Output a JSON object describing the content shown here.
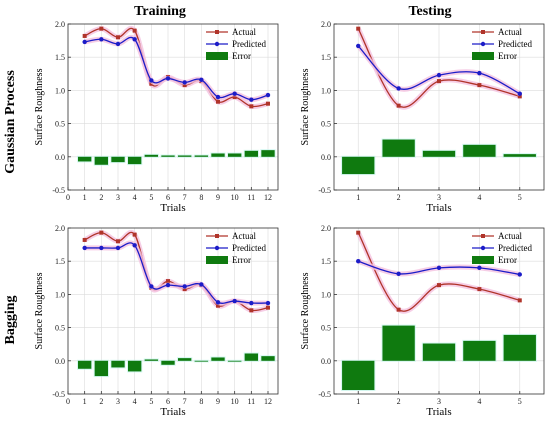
{
  "figure": {
    "col_titles": [
      "Training",
      "Testing"
    ],
    "row_titles": [
      "Gaussian Process",
      "Bagging"
    ]
  },
  "colors": {
    "actual": "#b0342a",
    "predicted": "#1c1cc8",
    "error": "#0f7a0f",
    "grid": "#dcdcdc",
    "axis": "#333333",
    "glow": "#f4c2e0"
  },
  "chart_data": [
    {
      "id": "gp-training",
      "type": "line+bar",
      "xlabel": "Trials",
      "ylabel": "Surface Roughness",
      "xlim": [
        0,
        12.6
      ],
      "ylim": [
        -0.5,
        2.0
      ],
      "xticks": [
        "0",
        "1",
        "2",
        "3",
        "4",
        "5",
        "6",
        "7",
        "8",
        "9",
        "10",
        "11",
        "12"
      ],
      "yticks": [
        "-0.5",
        "0.0",
        "0.5",
        "1.0",
        "1.5",
        "2.0"
      ],
      "x": [
        1,
        2,
        3,
        4,
        5,
        6,
        7,
        8,
        9,
        10,
        11,
        12
      ],
      "series": [
        {
          "name": "Actual",
          "values": [
            1.82,
            1.93,
            1.8,
            1.9,
            1.1,
            1.2,
            1.08,
            1.14,
            0.83,
            0.9,
            0.76,
            0.8
          ]
        },
        {
          "name": "Predicted",
          "values": [
            1.73,
            1.77,
            1.7,
            1.77,
            1.15,
            1.18,
            1.12,
            1.16,
            0.9,
            0.95,
            0.86,
            0.93
          ]
        },
        {
          "name": "Error",
          "values": [
            -0.07,
            -0.12,
            -0.08,
            -0.11,
            0.03,
            0.02,
            0.02,
            0.02,
            0.05,
            0.05,
            0.09,
            0.1
          ]
        }
      ],
      "legend": "top-right"
    },
    {
      "id": "gp-testing",
      "type": "line+bar",
      "xlabel": "Trials",
      "ylabel": "Surface Roughness",
      "xlim": [
        0.4,
        5.6
      ],
      "ylim": [
        -0.5,
        2.0
      ],
      "xticks": [
        "1",
        "2",
        "3",
        "4",
        "5"
      ],
      "yticks": [
        "-0.5",
        "0.0",
        "0.5",
        "1.0",
        "1.5",
        "2.0"
      ],
      "x": [
        1,
        2,
        3,
        4,
        5
      ],
      "series": [
        {
          "name": "Actual",
          "values": [
            1.93,
            0.77,
            1.14,
            1.08,
            0.91
          ]
        },
        {
          "name": "Predicted",
          "values": [
            1.67,
            1.03,
            1.23,
            1.26,
            0.95
          ]
        },
        {
          "name": "Error",
          "values": [
            -0.26,
            0.26,
            0.09,
            0.18,
            0.04
          ]
        }
      ],
      "legend": "top-right"
    },
    {
      "id": "bag-training",
      "type": "line+bar",
      "xlabel": "Trials",
      "ylabel": "Surface Roughness",
      "xlim": [
        0,
        12.6
      ],
      "ylim": [
        -0.5,
        2.0
      ],
      "xticks": [
        "0",
        "1",
        "2",
        "3",
        "4",
        "5",
        "6",
        "7",
        "8",
        "9",
        "10",
        "11",
        "12"
      ],
      "yticks": [
        "-0.5",
        "0.0",
        "0.5",
        "1.0",
        "1.5",
        "2.0"
      ],
      "x": [
        1,
        2,
        3,
        4,
        5,
        6,
        7,
        8,
        9,
        10,
        11,
        12
      ],
      "series": [
        {
          "name": "Actual",
          "values": [
            1.82,
            1.93,
            1.8,
            1.9,
            1.1,
            1.2,
            1.08,
            1.14,
            0.83,
            0.9,
            0.76,
            0.8
          ]
        },
        {
          "name": "Predicted",
          "values": [
            1.7,
            1.7,
            1.7,
            1.74,
            1.12,
            1.14,
            1.12,
            1.15,
            0.88,
            0.9,
            0.87,
            0.87
          ]
        },
        {
          "name": "Error",
          "values": [
            -0.12,
            -0.23,
            -0.1,
            -0.16,
            0.02,
            -0.06,
            0.04,
            -0.01,
            0.05,
            -0.01,
            0.11,
            0.07
          ]
        }
      ],
      "legend": "top-right"
    },
    {
      "id": "bag-testing",
      "type": "line+bar",
      "xlabel": "Trials",
      "ylabel": "Surface Roughness",
      "xlim": [
        0.4,
        5.6
      ],
      "ylim": [
        -0.5,
        2.0
      ],
      "xticks": [
        "1",
        "2",
        "3",
        "4",
        "5"
      ],
      "yticks": [
        "-0.5",
        "0.0",
        "0.5",
        "1.0",
        "1.5",
        "2.0"
      ],
      "x": [
        1,
        2,
        3,
        4,
        5
      ],
      "series": [
        {
          "name": "Actual",
          "values": [
            1.93,
            0.77,
            1.14,
            1.08,
            0.91
          ]
        },
        {
          "name": "Predicted",
          "values": [
            1.5,
            1.31,
            1.4,
            1.4,
            1.3
          ]
        },
        {
          "name": "Error",
          "values": [
            -0.44,
            0.53,
            0.26,
            0.3,
            0.39
          ]
        }
      ],
      "legend": "top-right"
    }
  ]
}
